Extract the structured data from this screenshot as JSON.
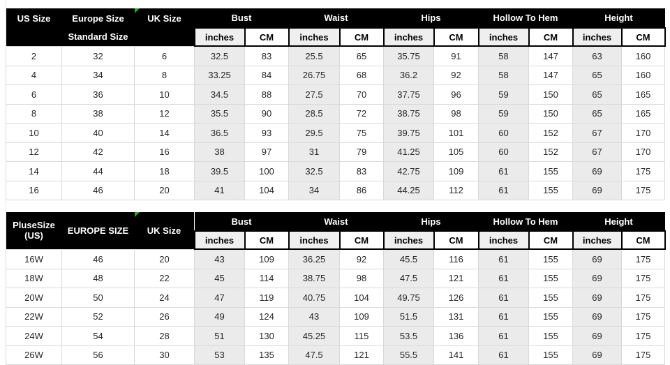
{
  "colors": {
    "header_bg": "#000000",
    "header_text": "#ffffff",
    "inches_col_bg": "#ebebeb",
    "unit_inches_bg": "#efefef",
    "unit_cm_bg": "#ffffff",
    "grid_border": "#d9d9d9",
    "body_text": "#262626",
    "flag_green": "#2aa52a"
  },
  "units": {
    "inches": "inches",
    "cm": "CM"
  },
  "measure_groups": [
    "Bust",
    "Waist",
    "Hips",
    "Hollow To Hem",
    "Height"
  ],
  "standard_table": {
    "us_size_label": "US Size",
    "europe_size_label": "Europe Size",
    "europe_size_sublabel": "Standard Size",
    "uk_size_label": "UK Size",
    "rows": [
      [
        "2",
        "32",
        "6",
        "32.5",
        "83",
        "25.5",
        "65",
        "35.75",
        "91",
        "58",
        "147",
        "63",
        "160"
      ],
      [
        "4",
        "34",
        "8",
        "33.25",
        "84",
        "26.75",
        "68",
        "36.2",
        "92",
        "58",
        "147",
        "65",
        "160"
      ],
      [
        "6",
        "36",
        "10",
        "34.5",
        "88",
        "27.5",
        "70",
        "37.75",
        "96",
        "59",
        "150",
        "65",
        "165"
      ],
      [
        "8",
        "38",
        "12",
        "35.5",
        "90",
        "28.5",
        "72",
        "38.75",
        "98",
        "59",
        "150",
        "65",
        "165"
      ],
      [
        "10",
        "40",
        "14",
        "36.5",
        "93",
        "29.5",
        "75",
        "39.75",
        "101",
        "60",
        "152",
        "67",
        "170"
      ],
      [
        "12",
        "42",
        "16",
        "38",
        "97",
        "31",
        "79",
        "41.25",
        "105",
        "60",
        "152",
        "67",
        "170"
      ],
      [
        "14",
        "44",
        "18",
        "39.5",
        "100",
        "32.5",
        "83",
        "42.75",
        "109",
        "61",
        "155",
        "69",
        "175"
      ],
      [
        "16",
        "46",
        "20",
        "41",
        "104",
        "34",
        "86",
        "44.25",
        "112",
        "61",
        "155",
        "69",
        "175"
      ]
    ]
  },
  "plus_table": {
    "us_size_label_line1": "PluseSize",
    "us_size_label_line2": "(US)",
    "europe_size_label": "EUROPE SIZE",
    "uk_size_label": "UK Size",
    "rows": [
      [
        "16W",
        "46",
        "20",
        "43",
        "109",
        "36.25",
        "92",
        "45.5",
        "116",
        "61",
        "155",
        "69",
        "175"
      ],
      [
        "18W",
        "48",
        "22",
        "45",
        "114",
        "38.75",
        "98",
        "47.5",
        "121",
        "61",
        "155",
        "69",
        "175"
      ],
      [
        "20W",
        "50",
        "24",
        "47",
        "119",
        "40.75",
        "104",
        "49.75",
        "126",
        "61",
        "155",
        "69",
        "175"
      ],
      [
        "22W",
        "52",
        "26",
        "49",
        "124",
        "43",
        "109",
        "51.5",
        "131",
        "61",
        "155",
        "69",
        "175"
      ],
      [
        "24W",
        "54",
        "28",
        "51",
        "130",
        "45.25",
        "115",
        "53.5",
        "136",
        "61",
        "155",
        "69",
        "175"
      ],
      [
        "26W",
        "56",
        "30",
        "53",
        "135",
        "47.5",
        "121",
        "55.5",
        "141",
        "61",
        "155",
        "69",
        "175"
      ]
    ]
  }
}
